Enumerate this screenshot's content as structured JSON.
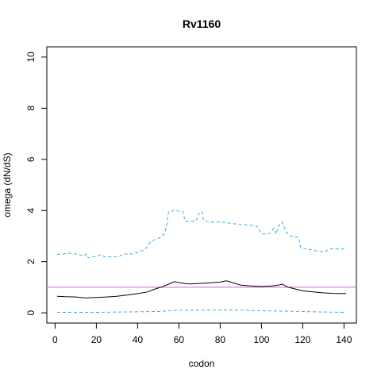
{
  "chart_data": {
    "type": "line",
    "title": "Rv1160",
    "xlabel": "codon",
    "ylabel": "omega (dN/dS)",
    "xlim": [
      -4,
      146
    ],
    "ylim": [
      -0.4,
      10.4
    ],
    "xticks": [
      0,
      20,
      40,
      60,
      80,
      100,
      120,
      140
    ],
    "yticks": [
      0,
      2,
      4,
      6,
      8,
      10
    ],
    "grid": false,
    "reference_line": {
      "y": 1,
      "color": "#cc66cc"
    },
    "series": [
      {
        "role": "upper",
        "style": "dashed",
        "color": "#3fa9e0",
        "points": [
          [
            1,
            2.28
          ],
          [
            4,
            2.3
          ],
          [
            6,
            2.33
          ],
          [
            9,
            2.32
          ],
          [
            12,
            2.27
          ],
          [
            14,
            2.22
          ],
          [
            15,
            2.3
          ],
          [
            16,
            2.15
          ],
          [
            18,
            2.2
          ],
          [
            20,
            2.2
          ],
          [
            22,
            2.27
          ],
          [
            24,
            2.2
          ],
          [
            28,
            2.18
          ],
          [
            31,
            2.2
          ],
          [
            33,
            2.3
          ],
          [
            38,
            2.3
          ],
          [
            41,
            2.4
          ],
          [
            43,
            2.45
          ],
          [
            45,
            2.6
          ],
          [
            46,
            2.75
          ],
          [
            48,
            2.85
          ],
          [
            51,
            2.95
          ],
          [
            53,
            3.1
          ],
          [
            54,
            3.4
          ],
          [
            55,
            3.95
          ],
          [
            58,
            4.0
          ],
          [
            62,
            3.95
          ],
          [
            63,
            3.58
          ],
          [
            68,
            3.58
          ],
          [
            69,
            3.7
          ],
          [
            70,
            3.95
          ],
          [
            71,
            3.95
          ],
          [
            72,
            3.62
          ],
          [
            75,
            3.55
          ],
          [
            80,
            3.55
          ],
          [
            85,
            3.5
          ],
          [
            90,
            3.45
          ],
          [
            95,
            3.42
          ],
          [
            98,
            3.38
          ],
          [
            100,
            3.1
          ],
          [
            102,
            3.08
          ],
          [
            104,
            3.1
          ],
          [
            106,
            3.3
          ],
          [
            107,
            3.08
          ],
          [
            108,
            3.3
          ],
          [
            109,
            3.5
          ],
          [
            110,
            3.55
          ],
          [
            112,
            3.15
          ],
          [
            114,
            3.0
          ],
          [
            118,
            2.95
          ],
          [
            119,
            2.55
          ],
          [
            122,
            2.5
          ],
          [
            125,
            2.45
          ],
          [
            128,
            2.4
          ],
          [
            131,
            2.4
          ],
          [
            133,
            2.5
          ],
          [
            141,
            2.5
          ]
        ]
      },
      {
        "role": "mean",
        "style": "solid",
        "color": "#000000",
        "points": [
          [
            1,
            0.65
          ],
          [
            5,
            0.63
          ],
          [
            10,
            0.62
          ],
          [
            15,
            0.58
          ],
          [
            20,
            0.6
          ],
          [
            25,
            0.62
          ],
          [
            30,
            0.65
          ],
          [
            35,
            0.7
          ],
          [
            40,
            0.75
          ],
          [
            45,
            0.82
          ],
          [
            48,
            0.92
          ],
          [
            52,
            1.02
          ],
          [
            55,
            1.12
          ],
          [
            58,
            1.22
          ],
          [
            60,
            1.18
          ],
          [
            65,
            1.13
          ],
          [
            70,
            1.15
          ],
          [
            75,
            1.17
          ],
          [
            80,
            1.2
          ],
          [
            83,
            1.25
          ],
          [
            86,
            1.18
          ],
          [
            90,
            1.08
          ],
          [
            95,
            1.05
          ],
          [
            100,
            1.03
          ],
          [
            105,
            1.05
          ],
          [
            108,
            1.08
          ],
          [
            110,
            1.12
          ],
          [
            113,
            1.0
          ],
          [
            117,
            0.92
          ],
          [
            120,
            0.86
          ],
          [
            125,
            0.82
          ],
          [
            130,
            0.78
          ],
          [
            135,
            0.76
          ],
          [
            141,
            0.75
          ]
        ]
      },
      {
        "role": "lower",
        "style": "dashed",
        "color": "#3fa9e0",
        "points": [
          [
            1,
            0.02
          ],
          [
            20,
            0.02
          ],
          [
            40,
            0.04
          ],
          [
            50,
            0.05
          ],
          [
            58,
            0.1
          ],
          [
            70,
            0.1
          ],
          [
            85,
            0.12
          ],
          [
            100,
            0.08
          ],
          [
            115,
            0.06
          ],
          [
            130,
            0.03
          ],
          [
            141,
            0.02
          ]
        ]
      }
    ]
  }
}
